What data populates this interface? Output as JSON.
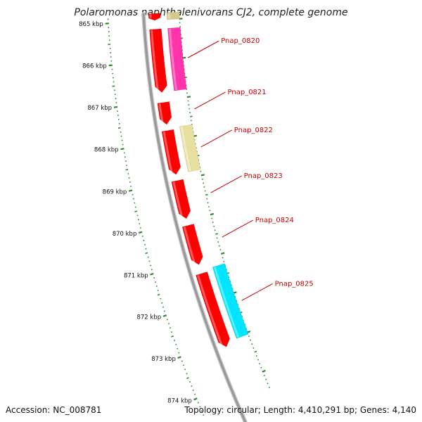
{
  "title": "Polaromonas naphthalenivorans CJ2, complete genome",
  "footer": {
    "accession": "Accession: NC_008781",
    "summary": "Topology: circular; Length: 4,410,291 bp; Genes: 4,140"
  },
  "scale": {
    "start_kbp": 865,
    "end_kbp": 874,
    "labels": [
      "865 kbp",
      "866 kbp",
      "867 kbp",
      "868 kbp",
      "869 kbp",
      "870 kbp",
      "871 kbp",
      "872 kbp",
      "873 kbp",
      "874 kbp"
    ]
  },
  "colors": {
    "backbone": "#999999",
    "ticks": "#2b8a2b",
    "label_red": "#cc0000",
    "cds_red": "#ff0000",
    "pink": "#ff33aa",
    "khaki": "#e8e0a0",
    "cyan": "#00e5ff"
  },
  "genes": [
    {
      "label": "",
      "strand": "reverse",
      "color": "#ff0000",
      "start_kbp": 864.5,
      "end_kbp": 865.0
    },
    {
      "label": "",
      "strand": "forward",
      "color": "#d6c98a",
      "start_kbp": 864.5,
      "end_kbp": 865.0
    },
    {
      "label": "Pnap_0820",
      "strand": "reverse",
      "color": "#ff0000",
      "start_kbp": 865.22,
      "end_kbp": 866.8
    },
    {
      "label": "",
      "strand": "forward",
      "color": "#ff33aa",
      "start_kbp": 865.22,
      "end_kbp": 866.8
    },
    {
      "label": "Pnap_0821",
      "strand": "reverse",
      "color": "#ff0000",
      "start_kbp": 867.05,
      "end_kbp": 867.6
    },
    {
      "label": "Pnap_0822",
      "strand": "reverse",
      "color": "#ff0000",
      "start_kbp": 867.75,
      "end_kbp": 868.85
    },
    {
      "label": "",
      "strand": "forward",
      "color": "#e8e0a0",
      "start_kbp": 867.7,
      "end_kbp": 868.85
    },
    {
      "label": "Pnap_0823",
      "strand": "reverse",
      "color": "#ff0000",
      "start_kbp": 869.0,
      "end_kbp": 869.95
    },
    {
      "label": "Pnap_0824",
      "strand": "reverse",
      "color": "#ff0000",
      "start_kbp": 870.12,
      "end_kbp": 871.1
    },
    {
      "label": "Pnap_0825",
      "strand": "reverse",
      "color": "#ff0000",
      "start_kbp": 871.32,
      "end_kbp": 873.15
    },
    {
      "label": "",
      "strand": "forward",
      "color": "#00e5ff",
      "start_kbp": 871.25,
      "end_kbp": 873.05
    }
  ]
}
